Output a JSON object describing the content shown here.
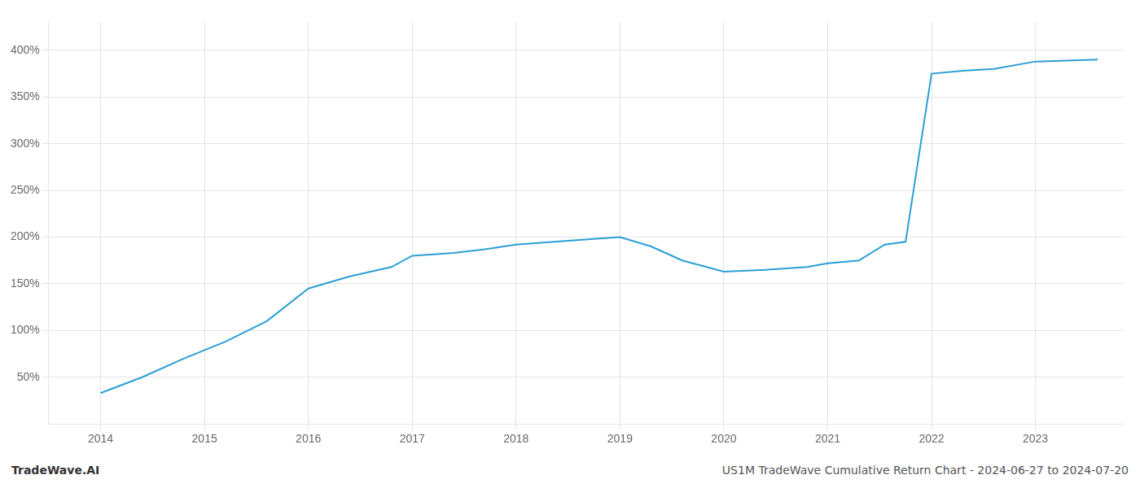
{
  "chart_data": {
    "type": "line",
    "x": [
      2014.0,
      2014.4,
      2014.8,
      2015.2,
      2015.6,
      2016.0,
      2016.4,
      2016.8,
      2017.0,
      2017.4,
      2017.7,
      2018.0,
      2018.5,
      2019.0,
      2019.3,
      2019.6,
      2020.0,
      2020.4,
      2020.8,
      2021.0,
      2021.3,
      2021.55,
      2021.75,
      2022.0,
      2022.3,
      2022.6,
      2023.0,
      2023.3,
      2023.6
    ],
    "values": [
      33,
      50,
      70,
      88,
      110,
      145,
      158,
      168,
      180,
      183,
      187,
      192,
      196,
      200,
      190,
      175,
      163,
      165,
      168,
      172,
      175,
      192,
      195,
      375,
      378,
      380,
      388,
      389,
      390
    ],
    "color": "#2b9fd4",
    "xlim": [
      2013.5,
      2023.85
    ],
    "xticks": [
      2014,
      2015,
      2016,
      2017,
      2018,
      2019,
      2020,
      2021,
      2022,
      2023
    ],
    "ylim": [
      0,
      430
    ],
    "yticks": [
      {
        "value": 50,
        "label": "50%"
      },
      {
        "value": 100,
        "label": "100%"
      },
      {
        "value": 150,
        "label": "150%"
      },
      {
        "value": 200,
        "label": "200%"
      },
      {
        "value": 250,
        "label": "250%"
      },
      {
        "value": 300,
        "label": "300%"
      },
      {
        "value": 350,
        "label": "350%"
      },
      {
        "value": 400,
        "label": "400%"
      }
    ],
    "grid": true,
    "annotations": [
      "TradeWave.AI",
      "US1M TradeWave Cumulative Return Chart - 2024-06-27 to 2024-07-20"
    ]
  }
}
